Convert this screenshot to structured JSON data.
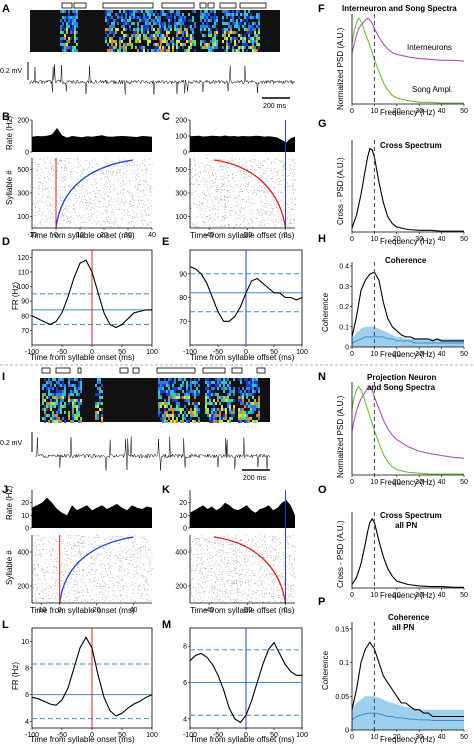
{
  "panels": {
    "A": {
      "letter": "A",
      "scale": "0.2 mV",
      "time_scale": "200 ms"
    },
    "B": {
      "letter": "B",
      "ylabel_top": "Rate (Hz)",
      "ylabel_bottom": "Syllable #",
      "xlabel": "Time from syllable onset (ms)"
    },
    "C": {
      "letter": "C",
      "xlabel": "Time from syllable offset (ms)"
    },
    "D": {
      "letter": "D",
      "ylabel": "FR (Hz)",
      "xlabel": "Time from syllable onset (ms)"
    },
    "E": {
      "letter": "E",
      "xlabel": "Time from syllable offset (ms)"
    },
    "F": {
      "letter": "F",
      "title": "Interneuron and Song Spectra",
      "ylabel": "Normalized PSD (A.U.)",
      "xlabel": "Frequency (Hz)",
      "legend1": "Interneurons",
      "legend2": "Song Ampl."
    },
    "G": {
      "letter": "G",
      "title": "Cross Spectrum",
      "ylabel": "Cross - PSD (A.U.)",
      "xlabel": "Frequency (Hz)"
    },
    "H": {
      "letter": "H",
      "title": "Coherence",
      "ylabel": "Coherence",
      "xlabel": "Frequency (Hz)"
    },
    "I": {
      "letter": "I",
      "scale": "0.2 mV",
      "time_scale": "200 ms"
    },
    "J": {
      "letter": "J",
      "ylabel_top": "Rate (Hz)",
      "ylabel_bottom": "Syllable #",
      "xlabel": "Time from syllable onset (ms)"
    },
    "K": {
      "letter": "K",
      "xlabel": "Time from syllable offset (ms)"
    },
    "L": {
      "letter": "L",
      "ylabel": "FR (Hz)",
      "xlabel": "Time from syllable onset (ms)"
    },
    "M": {
      "letter": "M",
      "xlabel": "Time from syllable offset (ms)"
    },
    "N": {
      "letter": "N",
      "title1": "Projection Neuron",
      "title2": "and Song Spectra",
      "ylabel": "Normalized PSD (A.U.)",
      "xlabel": "Frequency (Hz)"
    },
    "O": {
      "letter": "O",
      "title1": "Cross Spectrum",
      "title2": "all PN",
      "ylabel": "Cross - PSD (A.U.)",
      "xlabel": "Frequency (Hz)"
    },
    "P": {
      "letter": "P",
      "title1": "Coherence",
      "title2": "all PN",
      "ylabel": "Coherence",
      "xlabel": "Frequency (Hz)"
    }
  },
  "colors": {
    "interneuron_psd": "#b04fc4",
    "song_psd": "#6bbf3e",
    "onset_line": "#e02020",
    "offset_line": "#2040e0",
    "mean_line": "#3a90c8",
    "shade": "#9ecfec"
  },
  "chart_data": [
    {
      "id": "B",
      "type": "line",
      "xlim": [
        -10,
        40
      ],
      "ylim": [
        0,
        200
      ],
      "xticks": [
        -10,
        0,
        10,
        20,
        30,
        40
      ],
      "yticks_top": [
        0,
        200
      ],
      "yticks_bottom": [
        100,
        300,
        500
      ],
      "rate": [
        95,
        100,
        98,
        102,
        110,
        150,
        105,
        90,
        100,
        96,
        92,
        98,
        95,
        100,
        105,
        97,
        95,
        99,
        100,
        98,
        96,
        94,
        100,
        98,
        95
      ]
    },
    {
      "id": "C",
      "type": "line",
      "xlim": [
        -50,
        5
      ],
      "ylim": [
        0,
        200
      ],
      "xticks": [
        -40,
        -20,
        0
      ],
      "yticks_top": [
        0,
        100,
        200
      ],
      "yticks_bottom": [
        100,
        300,
        500
      ],
      "rate": [
        98,
        100,
        102,
        97,
        99,
        101,
        100,
        98,
        103,
        99,
        100,
        97,
        100,
        98,
        99,
        101,
        100,
        96,
        98,
        95,
        90,
        75,
        60,
        85,
        95
      ]
    },
    {
      "id": "D",
      "type": "line",
      "xlim": [
        -100,
        100
      ],
      "ylim": [
        60,
        125
      ],
      "xticks": [
        -100,
        -50,
        0,
        50,
        100
      ],
      "yticks": [
        70,
        80,
        90,
        100,
        110,
        120
      ],
      "mean": 84,
      "ci": [
        74,
        95
      ],
      "x": [
        -100,
        -90,
        -80,
        -70,
        -60,
        -50,
        -40,
        -30,
        -20,
        -10,
        0,
        10,
        20,
        30,
        40,
        50,
        60,
        70,
        80,
        90,
        100
      ],
      "y": [
        80,
        78,
        76,
        74,
        76,
        82,
        93,
        106,
        116,
        118,
        110,
        96,
        82,
        74,
        72,
        74,
        78,
        82,
        83,
        84,
        84
      ]
    },
    {
      "id": "E",
      "type": "line",
      "xlim": [
        -100,
        100
      ],
      "ylim": [
        60,
        100
      ],
      "xticks": [
        -100,
        -50,
        0,
        50,
        100
      ],
      "yticks": [
        70,
        80,
        90
      ],
      "mean": 82,
      "ci": [
        74,
        90
      ],
      "x": [
        -100,
        -90,
        -80,
        -70,
        -60,
        -50,
        -40,
        -30,
        -20,
        -10,
        0,
        10,
        20,
        30,
        40,
        50,
        60,
        70,
        80,
        90,
        100
      ],
      "y": [
        93,
        92,
        90,
        86,
        80,
        74,
        70,
        70,
        72,
        76,
        82,
        87,
        88,
        86,
        84,
        82,
        82,
        80,
        80,
        79,
        80
      ]
    },
    {
      "id": "F",
      "type": "line",
      "xlim": [
        0,
        50
      ],
      "ylim": [
        0,
        1.05
      ],
      "xticks": [
        0,
        10,
        20,
        30,
        40,
        50
      ],
      "peak_freq": 10,
      "series": [
        {
          "name": "Interneurons",
          "x": [
            0,
            1,
            2,
            3,
            4,
            5,
            6,
            7,
            8,
            9,
            10,
            12,
            14,
            16,
            18,
            20,
            25,
            30,
            35,
            40,
            45,
            50
          ],
          "y": [
            0.6,
            0.7,
            0.8,
            0.88,
            0.92,
            0.95,
            0.98,
            1.0,
            0.98,
            0.94,
            0.88,
            0.78,
            0.7,
            0.64,
            0.6,
            0.58,
            0.55,
            0.53,
            0.52,
            0.51,
            0.51,
            0.5
          ]
        },
        {
          "name": "Song Ampl.",
          "x": [
            0,
            1,
            2,
            3,
            4,
            5,
            6,
            7,
            8,
            9,
            10,
            12,
            14,
            16,
            18,
            20,
            25,
            30,
            35,
            40,
            45,
            50
          ],
          "y": [
            0.7,
            0.85,
            0.95,
            1.0,
            0.97,
            0.9,
            0.82,
            0.75,
            0.68,
            0.6,
            0.52,
            0.38,
            0.25,
            0.16,
            0.1,
            0.07,
            0.04,
            0.02,
            0.02,
            0.01,
            0.01,
            0.01
          ]
        }
      ]
    },
    {
      "id": "G",
      "type": "line",
      "xlim": [
        0,
        50
      ],
      "ylim": [
        0,
        1.1
      ],
      "xticks": [
        0,
        10,
        20,
        30,
        40,
        50
      ],
      "peak_freq": 10,
      "series": [
        {
          "x": [
            0,
            2,
            4,
            6,
            7,
            8,
            9,
            10,
            11,
            12,
            14,
            16,
            18,
            20,
            25,
            30,
            35,
            40,
            45,
            50
          ],
          "y": [
            0.05,
            0.2,
            0.45,
            0.75,
            0.9,
            1.0,
            0.98,
            0.9,
            0.75,
            0.6,
            0.35,
            0.18,
            0.1,
            0.06,
            0.03,
            0.02,
            0.02,
            0.01,
            0.01,
            0.01
          ]
        }
      ]
    },
    {
      "id": "H",
      "type": "area",
      "xlim": [
        0,
        50
      ],
      "ylim": [
        0,
        0.42
      ],
      "xticks": [
        0,
        10,
        20,
        30,
        40,
        50
      ],
      "yticks": [
        0,
        0.1,
        0.2,
        0.3,
        0.4
      ],
      "peak_freq": 10,
      "series": [
        {
          "x": [
            0,
            2,
            4,
            6,
            8,
            10,
            12,
            14,
            16,
            18,
            20,
            22,
            24,
            26,
            28,
            30,
            32,
            34,
            36,
            38,
            40,
            42,
            44,
            46,
            48,
            50
          ],
          "y": [
            0.05,
            0.15,
            0.28,
            0.33,
            0.36,
            0.37,
            0.33,
            0.22,
            0.14,
            0.1,
            0.08,
            0.06,
            0.05,
            0.05,
            0.04,
            0.04,
            0.04,
            0.04,
            0.03,
            0.04,
            0.03,
            0.03,
            0.03,
            0.03,
            0.03,
            0.03
          ]
        }
      ],
      "null_mean": [
        0.02,
        0.03,
        0.04,
        0.05,
        0.05,
        0.05,
        0.05,
        0.05,
        0.04,
        0.04,
        0.03,
        0.03,
        0.03,
        0.03,
        0.02,
        0.02,
        0.02,
        0.02,
        0.02,
        0.02,
        0.02,
        0.02,
        0.02,
        0.02,
        0.02,
        0.02
      ],
      "null_upper": [
        0.04,
        0.07,
        0.09,
        0.1,
        0.1,
        0.1,
        0.09,
        0.08,
        0.07,
        0.06,
        0.05,
        0.05,
        0.04,
        0.04,
        0.04,
        0.04,
        0.04,
        0.04,
        0.04,
        0.04,
        0.04,
        0.04,
        0.04,
        0.04,
        0.04,
        0.04
      ]
    },
    {
      "id": "J",
      "type": "line",
      "xlim": [
        -15,
        50
      ],
      "ylim": [
        0,
        30
      ],
      "xticks": [
        -10,
        0,
        20,
        40
      ],
      "yticks_top": [
        0,
        10,
        20
      ],
      "yticks_bottom": [
        200,
        400
      ],
      "rate": [
        16,
        18,
        20,
        24,
        20,
        15,
        12,
        10,
        18,
        14,
        16,
        18,
        14,
        16,
        18,
        15,
        17,
        19,
        16,
        14,
        18,
        16,
        15,
        17,
        16
      ]
    },
    {
      "id": "K",
      "type": "line",
      "xlim": [
        -50,
        5
      ],
      "ylim": [
        0,
        30
      ],
      "xticks": [
        -40,
        -20,
        0
      ],
      "yticks_top": [
        0,
        10,
        20
      ],
      "yticks_bottom": [
        200,
        400
      ],
      "rate": [
        12,
        14,
        16,
        18,
        15,
        17,
        14,
        16,
        20,
        18,
        15,
        14,
        16,
        18,
        14,
        12,
        15,
        16,
        18,
        14,
        16,
        20,
        22,
        18,
        10
      ]
    },
    {
      "id": "L",
      "type": "line",
      "xlim": [
        -100,
        100
      ],
      "ylim": [
        3.5,
        11
      ],
      "xticks": [
        -100,
        -50,
        0,
        50,
        100
      ],
      "yticks": [
        4,
        6,
        8,
        10
      ],
      "mean": 6.0,
      "ci": [
        4.2,
        8.3
      ],
      "x": [
        -100,
        -90,
        -80,
        -70,
        -60,
        -50,
        -40,
        -30,
        -20,
        -10,
        0,
        10,
        20,
        30,
        40,
        50,
        60,
        70,
        80,
        90,
        100
      ],
      "y": [
        5.8,
        5.7,
        5.5,
        5.3,
        5.2,
        5.6,
        6.5,
        8.0,
        9.5,
        10.3,
        9.5,
        7.5,
        5.8,
        4.8,
        4.4,
        4.6,
        5.0,
        5.3,
        5.5,
        5.8,
        6.0
      ]
    },
    {
      "id": "M",
      "type": "line",
      "xlim": [
        -100,
        100
      ],
      "ylim": [
        3.5,
        9
      ],
      "xticks": [
        -100,
        -50,
        0,
        50,
        100
      ],
      "yticks": [
        4,
        6,
        8
      ],
      "mean": 6.0,
      "ci": [
        4.2,
        7.8
      ],
      "x": [
        -100,
        -90,
        -80,
        -70,
        -60,
        -50,
        -40,
        -30,
        -20,
        -10,
        0,
        10,
        20,
        30,
        40,
        50,
        60,
        70,
        80,
        90,
        100
      ],
      "y": [
        7.2,
        7.5,
        7.6,
        7.4,
        7.0,
        6.4,
        5.6,
        4.6,
        4.0,
        3.8,
        4.2,
        5.0,
        6.0,
        7.0,
        7.8,
        8.2,
        7.6,
        7.0,
        6.6,
        6.4,
        6.4
      ]
    },
    {
      "id": "N",
      "type": "line",
      "xlim": [
        0,
        50
      ],
      "ylim": [
        0,
        1.05
      ],
      "xticks": [
        0,
        10,
        20,
        30,
        40,
        50
      ],
      "peak_freq": 10,
      "series": [
        {
          "name": "Projection neuron",
          "x": [
            0,
            1,
            2,
            3,
            4,
            5,
            6,
            7,
            8,
            9,
            10,
            12,
            14,
            16,
            18,
            20,
            25,
            30,
            35,
            40,
            45,
            50
          ],
          "y": [
            0.5,
            0.62,
            0.72,
            0.8,
            0.86,
            0.9,
            0.94,
            0.98,
            1.0,
            0.96,
            0.88,
            0.75,
            0.62,
            0.52,
            0.45,
            0.4,
            0.32,
            0.27,
            0.24,
            0.22,
            0.2,
            0.19
          ]
        },
        {
          "name": "Song",
          "x": [
            0,
            1,
            2,
            3,
            4,
            5,
            6,
            7,
            8,
            9,
            10,
            12,
            14,
            16,
            18,
            20,
            25,
            30,
            35,
            40,
            45,
            50
          ],
          "y": [
            0.75,
            0.88,
            0.96,
            1.0,
            0.96,
            0.9,
            0.82,
            0.74,
            0.66,
            0.58,
            0.5,
            0.36,
            0.23,
            0.15,
            0.09,
            0.06,
            0.03,
            0.02,
            0.01,
            0.01,
            0.01,
            0.01
          ]
        }
      ]
    },
    {
      "id": "O",
      "type": "line",
      "xlim": [
        0,
        50
      ],
      "ylim": [
        0,
        1.1
      ],
      "xticks": [
        0,
        10,
        20,
        30,
        40,
        50
      ],
      "peak_freq": 10,
      "series": [
        {
          "x": [
            0,
            2,
            4,
            6,
            7,
            8,
            9,
            10,
            11,
            12,
            14,
            16,
            18,
            20,
            25,
            30,
            35,
            40,
            45,
            50
          ],
          "y": [
            0.05,
            0.15,
            0.35,
            0.65,
            0.82,
            0.95,
            1.0,
            0.95,
            0.82,
            0.68,
            0.45,
            0.28,
            0.17,
            0.1,
            0.05,
            0.03,
            0.02,
            0.02,
            0.01,
            0.01
          ]
        }
      ]
    },
    {
      "id": "P",
      "type": "area",
      "xlim": [
        0,
        50
      ],
      "ylim": [
        0,
        0.16
      ],
      "xticks": [
        0,
        10,
        20,
        30,
        40,
        50
      ],
      "yticks": [
        0,
        0.05,
        0.1,
        0.15
      ],
      "peak_freq": 10,
      "series": [
        {
          "x": [
            0,
            2,
            4,
            6,
            8,
            10,
            12,
            14,
            16,
            18,
            20,
            22,
            24,
            26,
            28,
            30,
            32,
            34,
            36,
            38,
            40,
            42,
            44,
            46,
            48,
            50
          ],
          "y": [
            0.03,
            0.06,
            0.1,
            0.12,
            0.13,
            0.12,
            0.1,
            0.08,
            0.07,
            0.06,
            0.05,
            0.04,
            0.04,
            0.035,
            0.03,
            0.03,
            0.025,
            0.025,
            0.02,
            0.02,
            0.02,
            0.02,
            0.02,
            0.02,
            0.02,
            0.02
          ]
        }
      ],
      "null_mean": [
        0.015,
        0.02,
        0.022,
        0.024,
        0.025,
        0.025,
        0.024,
        0.022,
        0.02,
        0.02,
        0.018,
        0.018,
        0.017,
        0.016,
        0.016,
        0.015,
        0.015,
        0.015,
        0.014,
        0.014,
        0.014,
        0.014,
        0.014,
        0.014,
        0.014,
        0.014
      ],
      "null_upper": [
        0.03,
        0.04,
        0.045,
        0.05,
        0.05,
        0.05,
        0.048,
        0.045,
        0.042,
        0.04,
        0.038,
        0.036,
        0.034,
        0.033,
        0.032,
        0.031,
        0.03,
        0.03,
        0.03,
        0.03,
        0.03,
        0.03,
        0.03,
        0.03,
        0.03,
        0.03
      ]
    }
  ]
}
